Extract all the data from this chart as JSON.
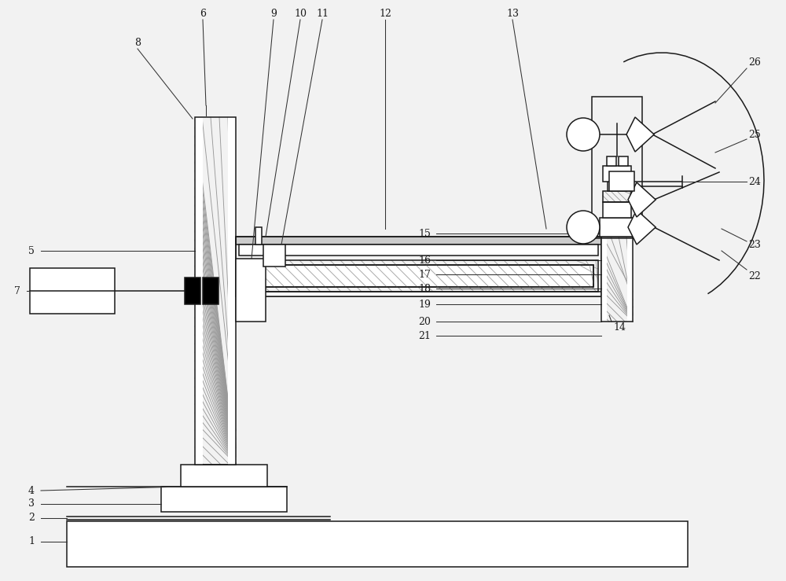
{
  "bg": "#f2f2f2",
  "lc": "#1a1a1a",
  "lw": 1.1,
  "fig_w": 10.0,
  "fig_h": 7.39,
  "xlim": [
    0,
    10
  ],
  "ylim": [
    0,
    7.39
  ]
}
